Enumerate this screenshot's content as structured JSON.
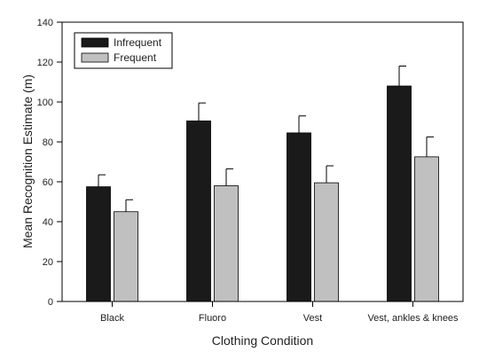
{
  "chart_data": {
    "type": "bar",
    "xlabel": "Clothing Condition",
    "ylabel": "Mean Recognition Estimate (m)",
    "ylim": [
      0,
      140
    ],
    "yticks": [
      0,
      20,
      40,
      60,
      80,
      100,
      120,
      140
    ],
    "categories": [
      "Black",
      "Fluoro",
      "Vest",
      "Vest, ankles & knees"
    ],
    "series": [
      {
        "name": "Infrequent",
        "color": "#1a1a1a",
        "values": [
          57.5,
          90.5,
          84.5,
          108
        ],
        "errors": [
          6,
          9,
          8.5,
          10
        ]
      },
      {
        "name": "Frequent",
        "color": "#c0c0c0",
        "values": [
          45,
          58,
          59.5,
          72.5
        ],
        "errors": [
          6,
          8.5,
          8.5,
          10
        ]
      }
    ],
    "legend": "top-left",
    "grid": false
  }
}
